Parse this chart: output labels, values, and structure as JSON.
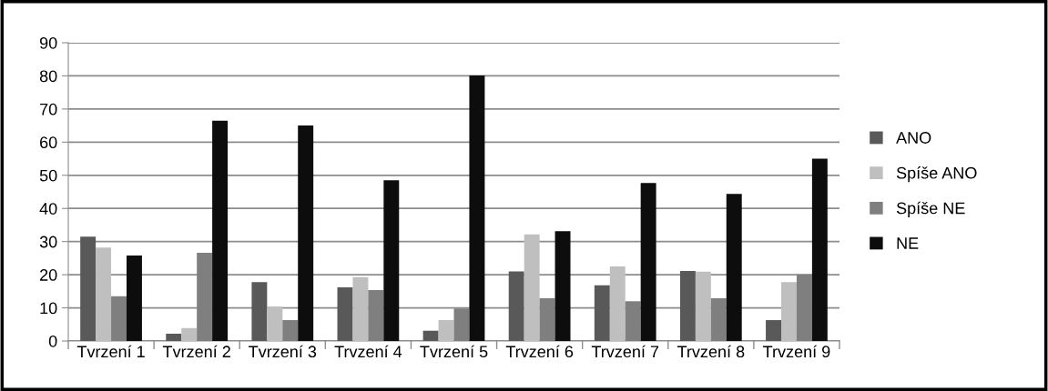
{
  "chart_data": {
    "type": "bar",
    "categories": [
      "Tvrzení 1",
      "Tvrzení 2",
      "Tvrzení 3",
      "Trvzení 4",
      "Tvrzení 5",
      "Trvzení 6",
      "Trvzení 7",
      "Trvzení 8",
      "Trvzení 9"
    ],
    "series": [
      {
        "name": "ANO",
        "color": "#595959",
        "values": [
          31.5,
          2.2,
          17.8,
          16.2,
          3.1,
          21.0,
          16.8,
          21.1,
          6.3
        ]
      },
      {
        "name": "Spíše ANO",
        "color": "#bfbfbf",
        "values": [
          28.2,
          3.9,
          10.4,
          19.3,
          6.3,
          32.2,
          22.5,
          20.9,
          17.8
        ]
      },
      {
        "name": "Spíše NE",
        "color": "#7f7f7f",
        "values": [
          13.5,
          26.6,
          6.3,
          15.4,
          9.8,
          12.9,
          12.0,
          12.9,
          20.1
        ]
      },
      {
        "name": "NE",
        "color": "#0d0d0d",
        "values": [
          25.8,
          66.5,
          65.0,
          48.5,
          80.1,
          33.1,
          47.7,
          44.4,
          55.0
        ]
      }
    ],
    "ylim": [
      0,
      90
    ],
    "yticks": [
      0,
      10,
      20,
      30,
      40,
      50,
      60,
      70,
      80,
      90
    ],
    "grid": "y",
    "legend": "right"
  }
}
